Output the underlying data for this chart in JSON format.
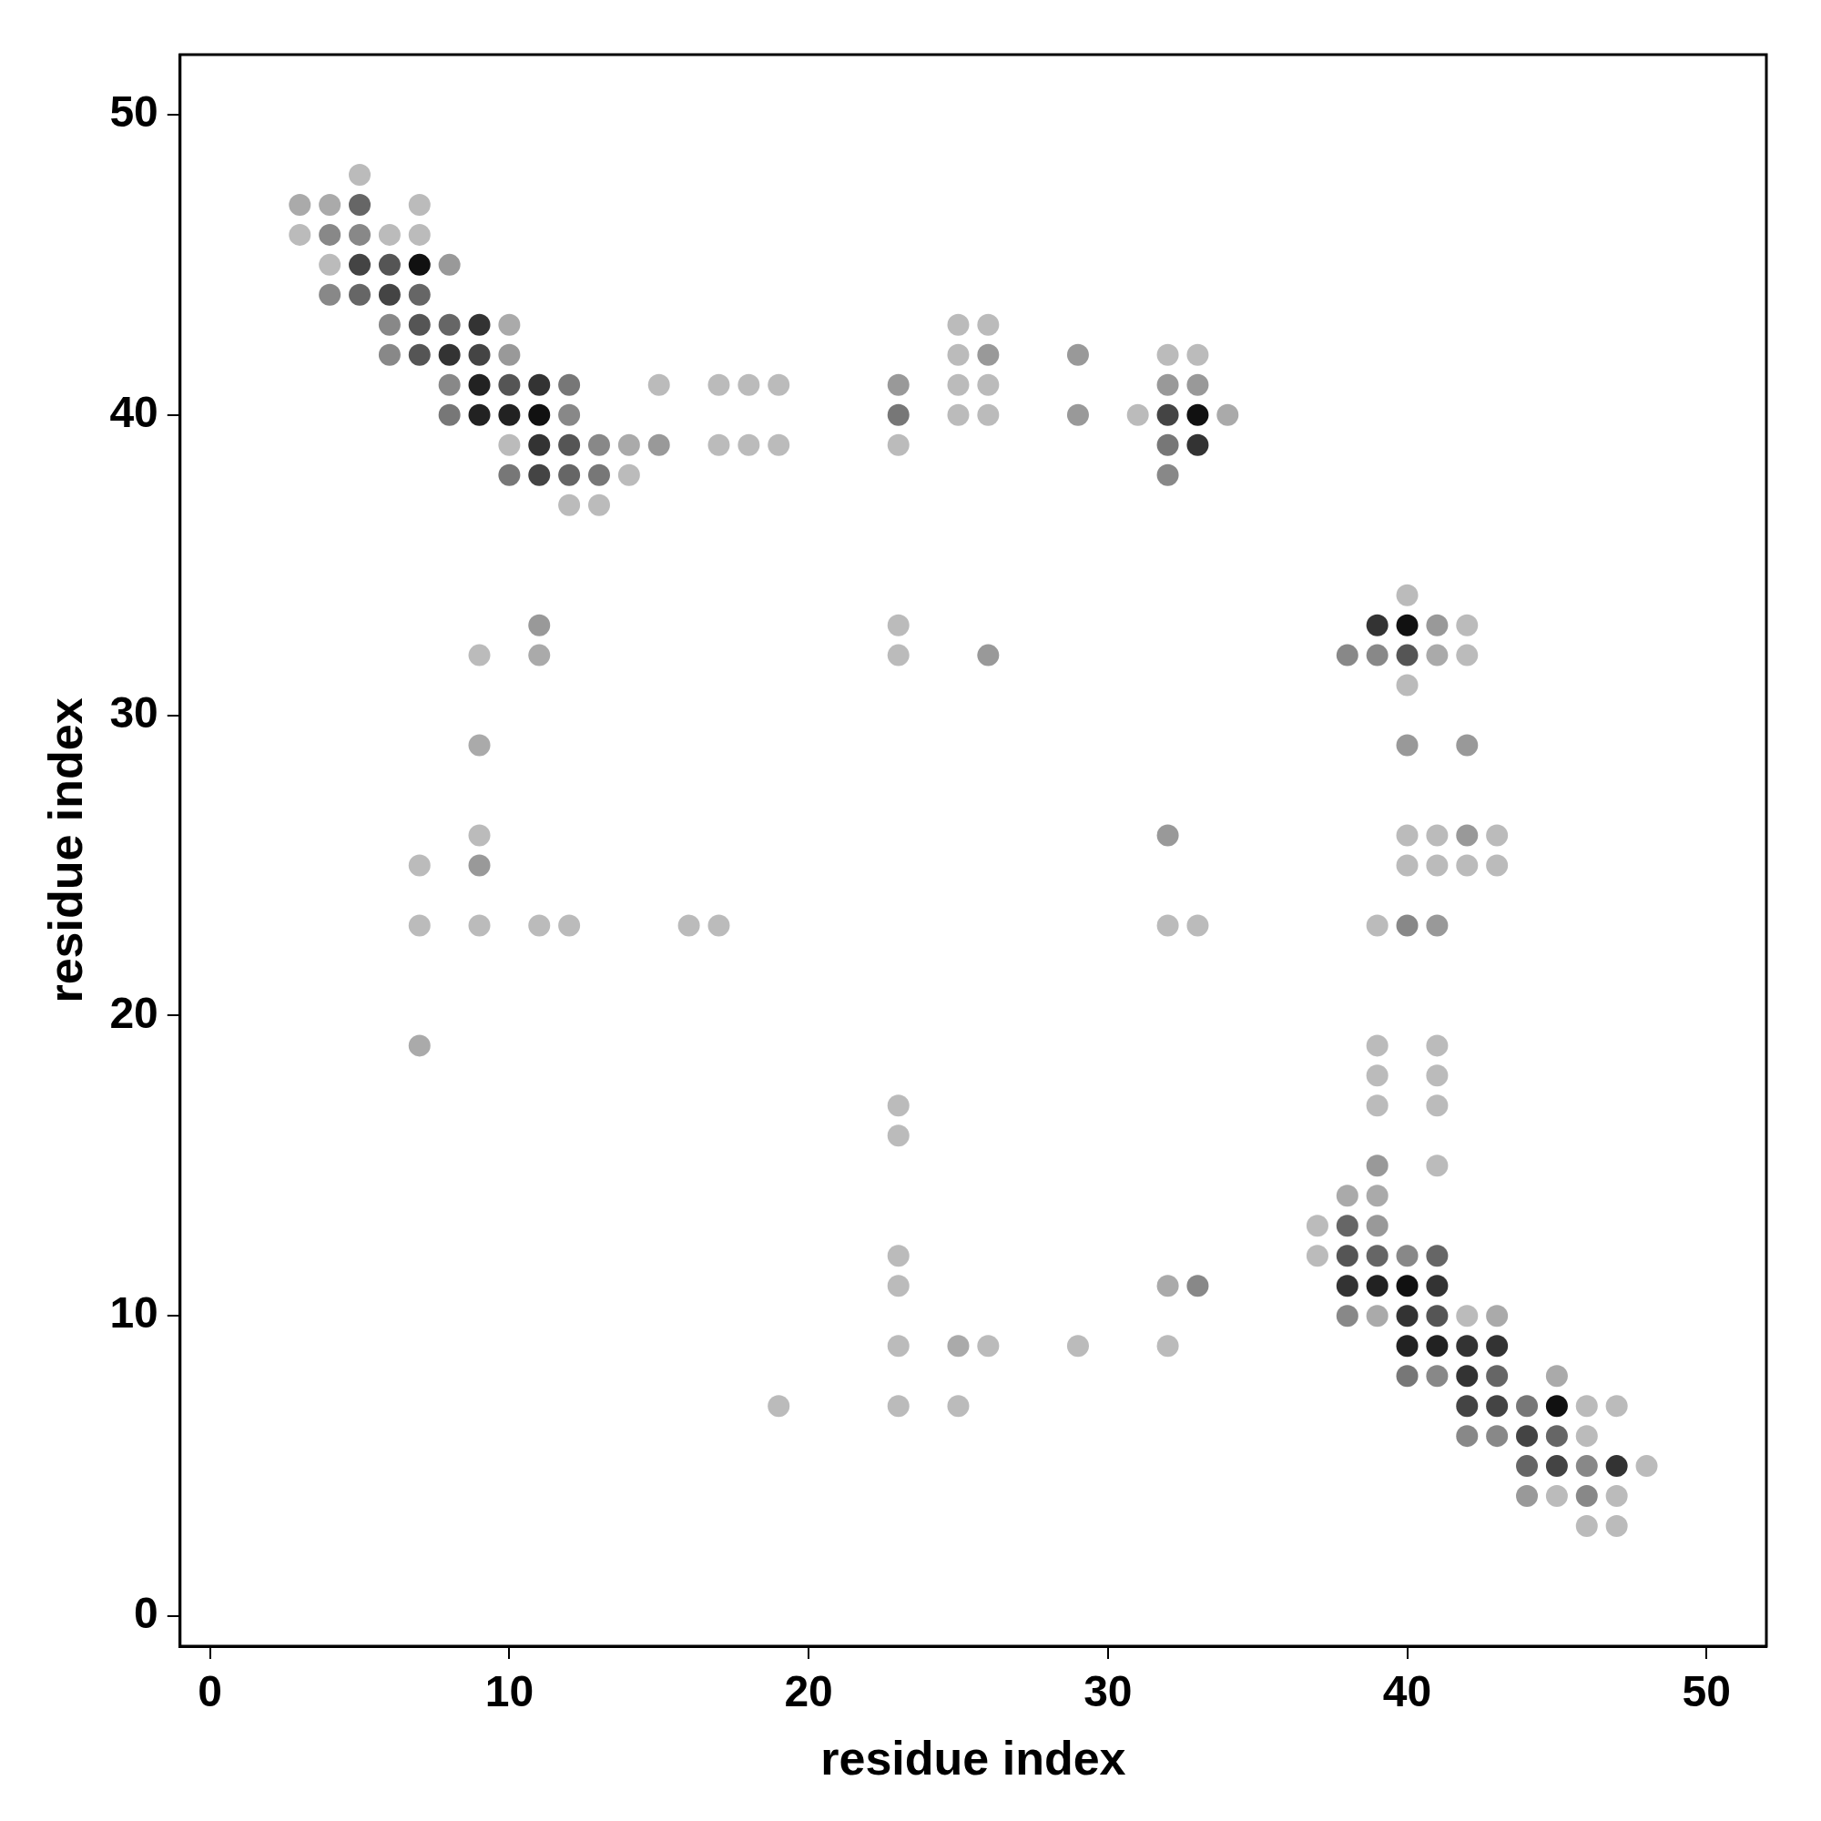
{
  "chart_data": {
    "type": "scatter",
    "xlabel": "residue index",
    "ylabel": "residue index",
    "xlim": [
      -1,
      52
    ],
    "ylim": [
      -1,
      52
    ],
    "xticks": [
      0,
      10,
      20,
      30,
      40,
      50
    ],
    "yticks": [
      0,
      10,
      20,
      30,
      40,
      50
    ],
    "grid": false,
    "legend": false,
    "marker": "circle",
    "series": [
      {
        "x": [
          5,
          3,
          4,
          5,
          7,
          3,
          4,
          5,
          6,
          7,
          4,
          5,
          6,
          7,
          8,
          4,
          5,
          6,
          7,
          6,
          7,
          8,
          9,
          10,
          25,
          26,
          6,
          7,
          8,
          9,
          10,
          25,
          26,
          29,
          32,
          33,
          8,
          9,
          10,
          11,
          12,
          15,
          17,
          18,
          19,
          23,
          25,
          26,
          32,
          33,
          8,
          9,
          10,
          11,
          12,
          23,
          25,
          26,
          29,
          31,
          32,
          33,
          34,
          10,
          11,
          12,
          13,
          14,
          15,
          17,
          18,
          19,
          23,
          32,
          33,
          10,
          11,
          12,
          13,
          14,
          32,
          12,
          13,
          40,
          11,
          23,
          39,
          40,
          41,
          42,
          9,
          11,
          23,
          26,
          38,
          39,
          40,
          41,
          42,
          40,
          9,
          40,
          42,
          9,
          32,
          40,
          41,
          42,
          43,
          7,
          9,
          40,
          41,
          42,
          43,
          7,
          9,
          11,
          12,
          16,
          17,
          32,
          33,
          39,
          40,
          41,
          7,
          39,
          41,
          39,
          41,
          23,
          39,
          41,
          23,
          39,
          41,
          38,
          39,
          37,
          38,
          39,
          23,
          37,
          38,
          39,
          40,
          41,
          23,
          32,
          33,
          38,
          39,
          40,
          41,
          38,
          39,
          40,
          41,
          42,
          43,
          23,
          25,
          26,
          29,
          32,
          40,
          41,
          42,
          43,
          40,
          41,
          42,
          43,
          45,
          19,
          23,
          25,
          42,
          43,
          44,
          45,
          46,
          47,
          42,
          43,
          44,
          45,
          46,
          44,
          45,
          46,
          47,
          48,
          44,
          45,
          46,
          47,
          46,
          47
        ],
        "values": [
          48,
          47,
          47,
          47,
          47,
          46,
          46,
          46,
          46,
          46,
          45,
          45,
          45,
          45,
          45,
          44,
          44,
          44,
          44,
          43,
          43,
          43,
          43,
          43,
          43,
          43,
          42,
          42,
          42,
          42,
          42,
          42,
          42,
          42,
          42,
          42,
          41,
          41,
          41,
          41,
          41,
          41,
          41,
          41,
          41,
          41,
          41,
          41,
          41,
          41,
          40,
          40,
          40,
          40,
          40,
          40,
          40,
          40,
          40,
          40,
          40,
          40,
          40,
          39,
          39,
          39,
          39,
          39,
          39,
          39,
          39,
          39,
          39,
          39,
          39,
          38,
          38,
          38,
          38,
          38,
          38,
          37,
          37,
          34,
          33,
          33,
          33,
          33,
          33,
          33,
          32,
          32,
          32,
          32,
          32,
          32,
          32,
          32,
          32,
          31,
          29,
          29,
          29,
          26,
          26,
          26,
          26,
          26,
          26,
          25,
          25,
          25,
          25,
          25,
          25,
          23,
          23,
          23,
          23,
          23,
          23,
          23,
          23,
          23,
          23,
          23,
          19,
          19,
          19,
          18,
          18,
          17,
          17,
          17,
          16,
          15,
          15,
          14,
          14,
          13,
          13,
          13,
          12,
          12,
          12,
          12,
          12,
          12,
          11,
          11,
          11,
          11,
          11,
          11,
          11,
          10,
          10,
          10,
          10,
          10,
          10,
          9,
          9,
          9,
          9,
          9,
          9,
          9,
          9,
          9,
          8,
          8,
          8,
          8,
          8,
          7,
          7,
          7,
          7,
          7,
          7,
          7,
          7,
          7,
          6,
          6,
          6,
          6,
          6,
          5,
          5,
          5,
          5,
          5,
          4,
          4,
          4,
          4,
          3,
          3
        ],
        "colors": [
          "#bbbbbb",
          "#aaaaaa",
          "#aaaaaa",
          "#666666",
          "#bbbbbb",
          "#bbbbbb",
          "#888888",
          "#888888",
          "#bbbbbb",
          "#bbbbbb",
          "#bbbbbb",
          "#444444",
          "#555555",
          "#111111",
          "#999999",
          "#888888",
          "#666666",
          "#444444",
          "#666666",
          "#888888",
          "#555555",
          "#666666",
          "#333333",
          "#aaaaaa",
          "#bbbbbb",
          "#bbbbbb",
          "#888888",
          "#555555",
          "#333333",
          "#444444",
          "#999999",
          "#bbbbbb",
          "#999999",
          "#999999",
          "#bbbbbb",
          "#bbbbbb",
          "#888888",
          "#222222",
          "#555555",
          "#333333",
          "#777777",
          "#bbbbbb",
          "#bbbbbb",
          "#bbbbbb",
          "#bbbbbb",
          "#999999",
          "#bbbbbb",
          "#bbbbbb",
          "#999999",
          "#999999",
          "#777777",
          "#222222",
          "#222222",
          "#111111",
          "#888888",
          "#777777",
          "#bbbbbb",
          "#bbbbbb",
          "#999999",
          "#bbbbbb",
          "#444444",
          "#111111",
          "#aaaaaa",
          "#bbbbbb",
          "#333333",
          "#555555",
          "#888888",
          "#aaaaaa",
          "#999999",
          "#bbbbbb",
          "#bbbbbb",
          "#bbbbbb",
          "#bbbbbb",
          "#777777",
          "#333333",
          "#777777",
          "#444444",
          "#666666",
          "#777777",
          "#bbbbbb",
          "#888888",
          "#bbbbbb",
          "#bbbbbb",
          "#bbbbbb",
          "#999999",
          "#bbbbbb",
          "#333333",
          "#111111",
          "#999999",
          "#bbbbbb",
          "#bbbbbb",
          "#aaaaaa",
          "#bbbbbb",
          "#999999",
          "#888888",
          "#888888",
          "#555555",
          "#aaaaaa",
          "#bbbbbb",
          "#bbbbbb",
          "#aaaaaa",
          "#999999",
          "#999999",
          "#bbbbbb",
          "#999999",
          "#bbbbbb",
          "#bbbbbb",
          "#999999",
          "#bbbbbb",
          "#bbbbbb",
          "#999999",
          "#bbbbbb",
          "#bbbbbb",
          "#bbbbbb",
          "#bbbbbb",
          "#bbbbbb",
          "#bbbbbb",
          "#bbbbbb",
          "#bbbbbb",
          "#bbbbbb",
          "#bbbbbb",
          "#bbbbbb",
          "#bbbbbb",
          "#bbbbbb",
          "#888888",
          "#999999",
          "#aaaaaa",
          "#bbbbbb",
          "#bbbbbb",
          "#bbbbbb",
          "#bbbbbb",
          "#bbbbbb",
          "#bbbbbb",
          "#bbbbbb",
          "#bbbbbb",
          "#999999",
          "#bbbbbb",
          "#aaaaaa",
          "#aaaaaa",
          "#bbbbbb",
          "#666666",
          "#999999",
          "#bbbbbb",
          "#bbbbbb",
          "#555555",
          "#666666",
          "#888888",
          "#666666",
          "#bbbbbb",
          "#aaaaaa",
          "#888888",
          "#333333",
          "#222222",
          "#111111",
          "#333333",
          "#888888",
          "#aaaaaa",
          "#333333",
          "#555555",
          "#bbbbbb",
          "#aaaaaa",
          "#bbbbbb",
          "#aaaaaa",
          "#bbbbbb",
          "#bbbbbb",
          "#bbbbbb",
          "#222222",
          "#222222",
          "#333333",
          "#333333",
          "#777777",
          "#888888",
          "#333333",
          "#666666",
          "#aaaaaa",
          "#bbbbbb",
          "#bbbbbb",
          "#bbbbbb",
          "#444444",
          "#444444",
          "#777777",
          "#111111",
          "#bbbbbb",
          "#bbbbbb",
          "#888888",
          "#888888",
          "#444444",
          "#666666",
          "#bbbbbb",
          "#666666",
          "#444444",
          "#888888",
          "#333333",
          "#bbbbbb",
          "#999999",
          "#bbbbbb",
          "#888888",
          "#bbbbbb",
          "#bbbbbb",
          "#bbbbbb"
        ]
      }
    ]
  }
}
